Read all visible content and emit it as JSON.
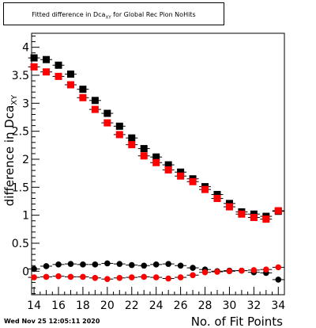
{
  "chart_data": {
    "type": "scatter",
    "title": {
      "text_before": "Fitted difference in Dca",
      "subscript": "XY",
      "text_after": " for Global Rec Pion NoHits"
    },
    "xlabel": "No. of Fit Points",
    "ylabel": {
      "text": "difference in Dca",
      "subscript": "XY"
    },
    "xlim": [
      13.8,
      34.5
    ],
    "ylim": [
      -0.42,
      4.25
    ],
    "x_ticks": [
      14,
      16,
      18,
      20,
      22,
      24,
      26,
      28,
      30,
      32,
      34
    ],
    "y_ticks": [
      0,
      0.5,
      1,
      1.5,
      2,
      2.5,
      3,
      3.5,
      4
    ],
    "y_tick_labels": [
      "0",
      "0.5",
      "1",
      "1.5",
      "2",
      "2.5",
      "3",
      "3.5",
      "4"
    ],
    "grid": false,
    "legend": "none",
    "x": [
      14,
      15,
      16,
      17,
      18,
      19,
      20,
      21,
      22,
      23,
      24,
      25,
      26,
      27,
      28,
      29,
      30,
      31,
      32,
      33,
      34
    ],
    "series": [
      {
        "marker": "square",
        "color": "#000000",
        "values": [
          3.81,
          3.78,
          3.68,
          3.52,
          3.25,
          3.05,
          2.82,
          2.59,
          2.38,
          2.19,
          2.04,
          1.9,
          1.77,
          1.65,
          1.51,
          1.37,
          1.21,
          1.06,
          1.02,
          0.98,
          1.07
        ]
      },
      {
        "marker": "square",
        "color": "#ff0000",
        "values": [
          3.65,
          3.56,
          3.48,
          3.33,
          3.1,
          2.89,
          2.65,
          2.44,
          2.26,
          2.06,
          1.94,
          1.81,
          1.7,
          1.6,
          1.46,
          1.3,
          1.15,
          1.02,
          0.96,
          0.93,
          1.08
        ]
      },
      {
        "marker": "circle",
        "color": "#000000",
        "values": [
          0.04,
          0.09,
          0.12,
          0.13,
          0.12,
          0.12,
          0.14,
          0.13,
          0.11,
          0.1,
          0.12,
          0.13,
          0.1,
          0.06,
          0.03,
          0.0,
          0.01,
          0.01,
          -0.02,
          -0.03,
          -0.15
        ]
      },
      {
        "marker": "circle",
        "color": "#ff0000",
        "values": [
          -0.11,
          -0.1,
          -0.09,
          -0.1,
          -0.1,
          -0.12,
          -0.14,
          -0.12,
          -0.11,
          -0.1,
          -0.11,
          -0.13,
          -0.11,
          -0.07,
          -0.02,
          -0.01,
          0.0,
          0.01,
          0.02,
          0.03,
          0.07
        ]
      }
    ]
  },
  "footer": {
    "timestamp": "Wed Nov 25 12:05:11 2020"
  }
}
